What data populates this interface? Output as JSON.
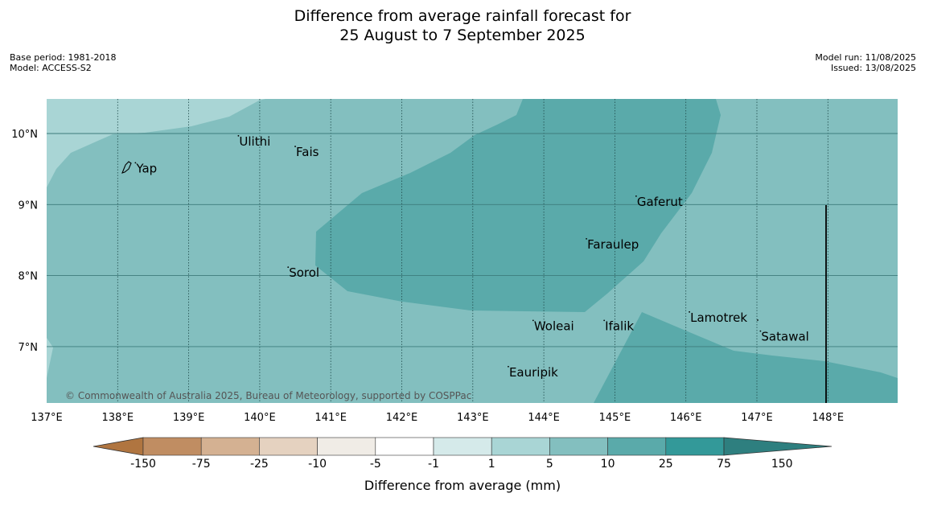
{
  "title": {
    "line1": "Difference from average rainfall forecast for",
    "line2": "25 August to 7 September 2025"
  },
  "meta": {
    "base_period": "Base period: 1981-2018",
    "model": "Model: ACCESS-S2",
    "model_run": "Model run: 11/08/2025",
    "issued": "Issued: 13/08/2025"
  },
  "map": {
    "lon_labels": [
      "137°E",
      "138°E",
      "139°E",
      "140°E",
      "141°E",
      "142°E",
      "143°E",
      "144°E",
      "145°E",
      "146°E",
      "147°E",
      "148°E"
    ],
    "lat_labels": [
      "10°N",
      "9°N",
      "8°N",
      "7°N"
    ],
    "places": [
      {
        "name": "Yap",
        "lon": 138.25,
        "lat": 9.52
      },
      {
        "name": "Ulithi",
        "lon": 139.7,
        "lat": 9.9
      },
      {
        "name": "Fais",
        "lon": 140.5,
        "lat": 9.75
      },
      {
        "name": "Gaferut",
        "lon": 145.3,
        "lat": 9.05
      },
      {
        "name": "Faraulep",
        "lon": 144.6,
        "lat": 8.45
      },
      {
        "name": "Sorol",
        "lon": 140.4,
        "lat": 8.05
      },
      {
        "name": "Lamotrek",
        "lon": 146.05,
        "lat": 7.42
      },
      {
        "name": "Woleai",
        "lon": 143.85,
        "lat": 7.3
      },
      {
        "name": "Ifalik",
        "lon": 144.85,
        "lat": 7.3
      },
      {
        "name": "Satawal",
        "lon": 147.05,
        "lat": 7.15
      },
      {
        "name": "Eauripik",
        "lon": 143.5,
        "lat": 6.65
      }
    ],
    "copyright": "© Commonwealth of Australia 2025, Bureau of Meteorology, supported by COSPPac"
  },
  "colorbar": {
    "title": "Difference from average (mm)",
    "labels": [
      "-150",
      "-75",
      "-25",
      "-10",
      "-5",
      "-1",
      "1",
      "5",
      "10",
      "25",
      "75",
      "150"
    ],
    "colors": [
      "#b07540",
      "#c08d62",
      "#d4b192",
      "#e5d2c0",
      "#f0ece6",
      "#ffffff",
      "#d5eaea",
      "#a9d5d5",
      "#83bfbf",
      "#5aaaaa",
      "#339999",
      "#2e7f7f"
    ]
  },
  "zone_colors": {
    "light": "#a9d5d5",
    "mid": "#83bfbf",
    "dark": "#5aaaaa"
  }
}
